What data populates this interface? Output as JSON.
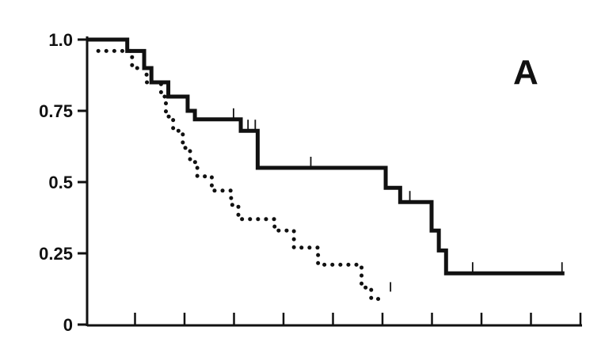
{
  "chart_data": {
    "type": "line",
    "panel_label": "A",
    "ylim": [
      0,
      1
    ],
    "y_ticks": [
      {
        "value": 0,
        "label": "0"
      },
      {
        "value": 0.25,
        "label": "0.25"
      },
      {
        "value": 0.5,
        "label": "0.5"
      },
      {
        "value": 0.75,
        "label": "0.75"
      },
      {
        "value": 1.0,
        "label": "1.0"
      }
    ],
    "x_tick_count": 10,
    "xlim": [
      0,
      10
    ],
    "grid": false,
    "series": [
      {
        "style": "solid",
        "color": "#111111",
        "steps": [
          [
            0,
            1.0
          ],
          [
            0.7,
            0.96
          ],
          [
            1.05,
            0.9
          ],
          [
            1.2,
            0.85
          ],
          [
            1.55,
            0.8
          ],
          [
            1.95,
            0.75
          ],
          [
            2.1,
            0.72
          ],
          [
            3.05,
            0.68
          ],
          [
            3.4,
            0.55
          ],
          [
            6.05,
            0.48
          ],
          [
            6.35,
            0.43
          ],
          [
            7.0,
            0.33
          ],
          [
            7.15,
            0.26
          ],
          [
            7.3,
            0.18
          ],
          [
            9.75,
            0.18
          ]
        ],
        "censor_marks": [
          [
            2.9,
            0.72
          ],
          [
            3.2,
            0.68
          ],
          [
            3.35,
            0.68
          ],
          [
            4.5,
            0.55
          ],
          [
            6.55,
            0.43
          ],
          [
            7.85,
            0.18
          ],
          [
            9.7,
            0.18
          ]
        ]
      },
      {
        "style": "dotted",
        "color": "#111111",
        "steps": [
          [
            0.1,
            0.96
          ],
          [
            0.8,
            0.9
          ],
          [
            1.1,
            0.85
          ],
          [
            1.4,
            0.8
          ],
          [
            1.5,
            0.73
          ],
          [
            1.65,
            0.68
          ],
          [
            1.85,
            0.62
          ],
          [
            2.0,
            0.57
          ],
          [
            2.15,
            0.52
          ],
          [
            2.45,
            0.47
          ],
          [
            2.85,
            0.42
          ],
          [
            3.0,
            0.37
          ],
          [
            3.75,
            0.33
          ],
          [
            4.15,
            0.27
          ],
          [
            4.65,
            0.21
          ],
          [
            5.55,
            0.13
          ],
          [
            5.75,
            0.09
          ],
          [
            6.05,
            0.09
          ]
        ],
        "censor_marks": [
          [
            6.15,
            0.11
          ]
        ]
      }
    ]
  }
}
